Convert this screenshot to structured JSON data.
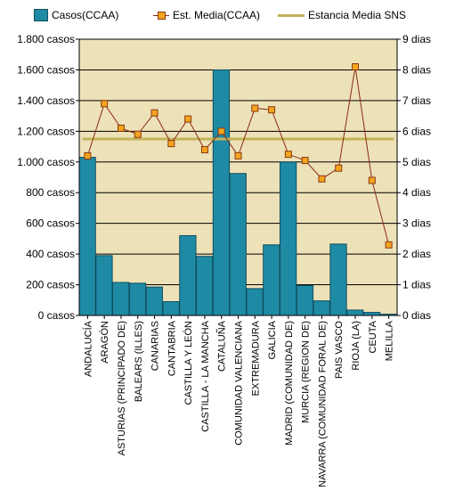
{
  "legend": {
    "bars": "Casos(CCAA)",
    "line": "Est.  Media(CCAA)",
    "avg": "Estancia Media SNS"
  },
  "colors": {
    "plot_bg": "#ede1b8",
    "bar": "#1f8aa3",
    "bar_edge": "#0f4f5f",
    "line": "#8b2a14",
    "marker": "#f4a41e",
    "avg_line": "#c2b35a",
    "grid": "#000000"
  },
  "chart_data": {
    "type": "bar",
    "categories": [
      "ANDALUCÍA",
      "ARAGÓN",
      "ASTURIAS (PRINCIPADO DE)",
      "BALEARS (ILLES)",
      "CANARIAS",
      "CANTABRIA",
      "CASTILLA Y LEÓN",
      "CASTILLA - LA MANCHA",
      "CATALUÑA",
      "COMUNIDAD VALENCIANA",
      "EXTREMADURA",
      "GALICIA",
      "MADRID (COMUNIDAD DE)",
      "MURCIA (REGION DE)",
      "NAVARRA (COMUNIDAD FORAL DE)",
      "PAIS VASCO",
      "RIOJA (LA)",
      "CEUTA",
      "MELILLA"
    ],
    "series": [
      {
        "name": "Casos(CCAA)",
        "axis": "left",
        "values": [
          1030,
          390,
          215,
          210,
          185,
          90,
          520,
          385,
          1600,
          925,
          175,
          460,
          1000,
          195,
          95,
          465,
          35,
          20,
          8
        ]
      },
      {
        "name": "Est.  Media(CCAA)",
        "axis": "right",
        "values": [
          5.2,
          6.9,
          6.1,
          5.9,
          6.6,
          5.6,
          6.4,
          5.4,
          6.0,
          5.2,
          6.75,
          6.7,
          5.25,
          5.05,
          4.45,
          4.8,
          8.1,
          4.4,
          2.3
        ]
      }
    ],
    "reference": {
      "name": "Estancia Media SNS",
      "value": 5.75,
      "axis": "right"
    },
    "left_axis": {
      "ylim": [
        0,
        1800
      ],
      "ticks": [
        0,
        200,
        400,
        600,
        800,
        1000,
        1200,
        1400,
        1600,
        1800
      ],
      "tick_labels": [
        "0 casos",
        "200 casos",
        "400 casos",
        "600 casos",
        "800 casos",
        "1.000 casos",
        "1.200 casos",
        "1.400 casos",
        "1.600 casos",
        "1.800 casos"
      ]
    },
    "right_axis": {
      "ylim": [
        0,
        9
      ],
      "ticks": [
        0,
        1,
        2,
        3,
        4,
        5,
        6,
        7,
        8,
        9
      ],
      "tick_labels": [
        "0 dias",
        "1 dias",
        "2 dias",
        "3 dias",
        "4 dias",
        "5 dias",
        "6 dias",
        "7 dias",
        "8 dias",
        "9 dias"
      ]
    },
    "grid": true,
    "legend_position": "top"
  }
}
